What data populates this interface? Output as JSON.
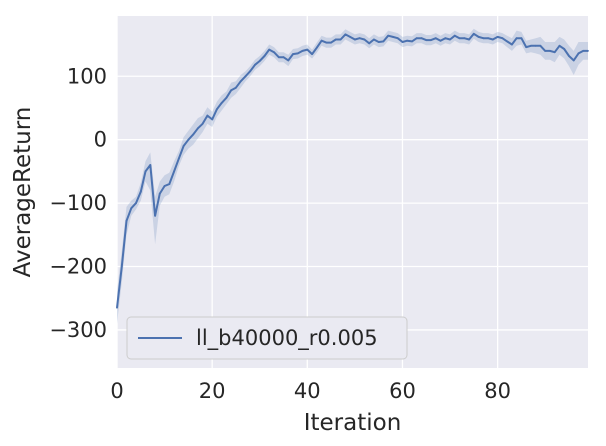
{
  "chart_data": {
    "type": "line",
    "title": "",
    "xlabel": "Iteration",
    "ylabel": "AverageReturn",
    "xlim": [
      0,
      99
    ],
    "ylim": [
      -360,
      195
    ],
    "xticks": [
      0,
      20,
      40,
      60,
      80
    ],
    "yticks": [
      -300,
      -200,
      -100,
      0,
      100
    ],
    "xtick_labels": [
      "0",
      "20",
      "40",
      "60",
      "80"
    ],
    "ytick_labels": [
      "−300",
      "−200",
      "−100",
      "0",
      "100"
    ],
    "grid": true,
    "legend_position": "lower-left",
    "colors": {
      "line": "#4c72b0",
      "band": "#4c72b0",
      "background": "#eaeaf2",
      "grid": "#ffffff"
    },
    "series": [
      {
        "name": "ll_b40000_r0.005",
        "x": [
          0,
          1,
          2,
          3,
          4,
          5,
          6,
          7,
          8,
          9,
          10,
          11,
          12,
          13,
          14,
          15,
          16,
          17,
          18,
          19,
          20,
          21,
          22,
          23,
          24,
          25,
          26,
          27,
          28,
          29,
          30,
          31,
          32,
          33,
          34,
          35,
          36,
          37,
          38,
          39,
          40,
          41,
          42,
          43,
          44,
          45,
          46,
          47,
          48,
          49,
          50,
          51,
          52,
          53,
          54,
          55,
          56,
          57,
          58,
          59,
          60,
          61,
          62,
          63,
          64,
          65,
          66,
          67,
          68,
          69,
          70,
          71,
          72,
          73,
          74,
          75,
          76,
          77,
          78,
          79,
          80,
          81,
          82,
          83,
          84,
          85,
          86,
          87,
          88,
          89,
          90,
          91,
          92,
          93,
          94,
          95,
          96,
          97,
          98,
          99
        ],
        "values": [
          -265,
          -200,
          -128,
          -108,
          -100,
          -82,
          -50,
          -40,
          -120,
          -85,
          -73,
          -70,
          -50,
          -30,
          -10,
          0,
          8,
          18,
          25,
          38,
          32,
          48,
          58,
          66,
          78,
          82,
          92,
          100,
          108,
          118,
          124,
          132,
          142,
          138,
          130,
          130,
          125,
          135,
          136,
          140,
          142,
          135,
          145,
          156,
          153,
          153,
          158,
          158,
          166,
          162,
          158,
          160,
          158,
          152,
          158,
          154,
          155,
          164,
          162,
          160,
          154,
          156,
          155,
          160,
          160,
          157,
          157,
          160,
          156,
          160,
          158,
          164,
          160,
          160,
          158,
          167,
          162,
          160,
          160,
          158,
          162,
          160,
          155,
          150,
          160,
          160,
          146,
          148,
          148,
          148,
          140,
          140,
          138,
          148,
          143,
          132,
          125,
          136,
          140,
          140
        ],
        "lower": [
          -290,
          -225,
          -150,
          -120,
          -110,
          -96,
          -66,
          -80,
          -165,
          -104,
          -90,
          -86,
          -66,
          -42,
          -24,
          -14,
          -8,
          2,
          12,
          25,
          20,
          36,
          46,
          56,
          66,
          72,
          82,
          92,
          100,
          110,
          116,
          124,
          134,
          130,
          122,
          122,
          116,
          127,
          128,
          132,
          134,
          128,
          137,
          148,
          145,
          145,
          150,
          150,
          158,
          154,
          150,
          152,
          150,
          144,
          150,
          146,
          147,
          156,
          154,
          152,
          146,
          148,
          147,
          152,
          152,
          149,
          149,
          152,
          148,
          152,
          150,
          156,
          152,
          152,
          150,
          159,
          154,
          152,
          152,
          150,
          154,
          152,
          146,
          140,
          148,
          150,
          136,
          138,
          136,
          134,
          126,
          126,
          122,
          134,
          128,
          116,
          102,
          118,
          126,
          126
        ],
        "upper": [
          -240,
          -175,
          -106,
          -96,
          -90,
          -68,
          -34,
          -20,
          -90,
          -66,
          -56,
          -52,
          -34,
          -18,
          4,
          14,
          24,
          34,
          38,
          51,
          44,
          60,
          70,
          76,
          90,
          92,
          102,
          108,
          116,
          126,
          132,
          140,
          150,
          146,
          138,
          138,
          134,
          143,
          144,
          148,
          150,
          142,
          153,
          164,
          161,
          161,
          166,
          166,
          174,
          170,
          166,
          168,
          166,
          160,
          166,
          162,
          163,
          172,
          170,
          168,
          162,
          164,
          163,
          168,
          168,
          165,
          165,
          168,
          164,
          168,
          166,
          172,
          168,
          168,
          166,
          175,
          170,
          168,
          168,
          166,
          170,
          168,
          164,
          160,
          172,
          170,
          156,
          158,
          160,
          162,
          154,
          154,
          154,
          162,
          158,
          148,
          140,
          154,
          154,
          154
        ]
      }
    ]
  }
}
